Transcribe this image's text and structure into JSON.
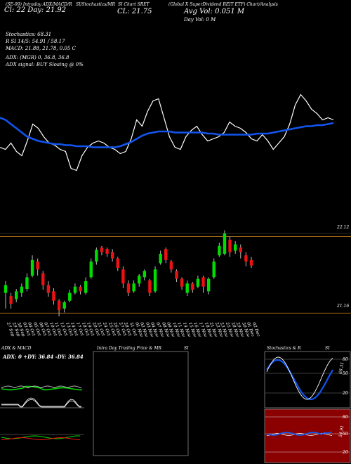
{
  "header": {
    "line1_left": "(SE-99) Intraday ADX/MACD/R",
    "line1_mid": "SI/Stochastics/MR",
    "line1_mid2": "SI Chart SRET",
    "line1_right": "(Global X SuperDividend REIT ETF) Chart/Analysis",
    "line2_left": "Cl: 22  Day: 21.92",
    "line2_mid": "CL: 21.75",
    "vol": "Avg Vol: 0.051 M",
    "dayvol": "Day Vol: 0   M"
  },
  "indicators": {
    "stoch": "Stochastics: 68.31",
    "rsi": "R          SI 14/5: 54.91 / 58.17",
    "macd": "MACD: 21.88, 21.78, 0.05 C",
    "adx": "ADX:                    (MGR) 0, 36.8, 36.8",
    "adx_signal": "ADX signal:                  BUY Sloaing @ 0%"
  },
  "price_labels": {
    "upper": "22.12",
    "lower": "21.16"
  },
  "dates": [
    "27 Sep",
    "29 Sep",
    "30 Sep",
    "03 Oct",
    "04 Oct",
    "05 Oct",
    "06 Oct",
    "07 Oct",
    "10 Oct",
    "11 Oct",
    "12 Oct",
    "13 Oct",
    "14 Oct",
    "17 Oct",
    "18 Oct",
    "19 Oct",
    "20 Oct",
    "21 Oct",
    "24 Oct",
    "25 Oct",
    "26 Oct",
    "27 Oct",
    "28 Oct",
    "31 Oct",
    "01 Nov",
    "02 Nov",
    "03 Nov",
    "04 Nov",
    "07 Nov",
    "08 Nov",
    "09 Nov",
    "10 Nov",
    "11 Nov",
    "14 Nov",
    "15 Nov",
    "16 Nov",
    "17 Nov",
    "18 Nov",
    "21 Nov",
    "22 Nov",
    "23 Nov",
    "25 Nov",
    "28 Nov",
    "29 Nov",
    "30 Nov",
    "01 Dec",
    "02 Dec"
  ],
  "panels": {
    "adx_title": "ADX  & MACD",
    "adx_values": "ADX: 0  +DY: 36.84  -DY: 36.84",
    "intra_title": "Intra Day Trading Price  & MR",
    "intra_si": "SI",
    "stoch_title": "Stochastics & R",
    "stoch_si": "SI",
    "stoch_levels": [
      "80",
      "50",
      "20"
    ],
    "stoch_value": "68.31",
    "rsi_levels": [
      "80",
      "50",
      "20"
    ],
    "rsi_value": "54.91"
  },
  "colors": {
    "up": "#00dd00",
    "down": "#ee1111",
    "ma": "#1155ee",
    "price_line": "#ffffff",
    "rsi_bg": "#8b0000",
    "grid": "#aa6a1a"
  },
  "chart_data": {
    "type": "candlestick",
    "candles": [
      {
        "o": 21.4,
        "c": 21.5,
        "h": 21.55,
        "l": 21.2
      },
      {
        "o": 21.36,
        "c": 21.26,
        "h": 21.4,
        "l": 21.2
      },
      {
        "o": 21.32,
        "c": 21.42,
        "h": 21.45,
        "l": 21.28
      },
      {
        "o": 21.4,
        "c": 21.48,
        "h": 21.52,
        "l": 21.35
      },
      {
        "o": 21.45,
        "c": 21.6,
        "h": 21.65,
        "l": 21.42
      },
      {
        "o": 21.62,
        "c": 21.82,
        "h": 21.88,
        "l": 21.6
      },
      {
        "o": 21.8,
        "c": 21.7,
        "h": 21.84,
        "l": 21.62
      },
      {
        "o": 21.65,
        "c": 21.5,
        "h": 21.68,
        "l": 21.44
      },
      {
        "o": 21.5,
        "c": 21.4,
        "h": 21.55,
        "l": 21.35
      },
      {
        "o": 21.42,
        "c": 21.3,
        "h": 21.46,
        "l": 21.25
      },
      {
        "o": 21.3,
        "c": 21.18,
        "h": 21.32,
        "l": 21.1
      },
      {
        "o": 21.2,
        "c": 21.28,
        "h": 21.3,
        "l": 21.15
      },
      {
        "o": 21.3,
        "c": 21.4,
        "h": 21.44,
        "l": 21.28
      },
      {
        "o": 21.4,
        "c": 21.48,
        "h": 21.52,
        "l": 21.38
      },
      {
        "o": 21.48,
        "c": 21.42,
        "h": 21.5,
        "l": 21.38
      },
      {
        "o": 21.4,
        "c": 21.55,
        "h": 21.6,
        "l": 21.38
      },
      {
        "o": 21.6,
        "c": 21.8,
        "h": 21.84,
        "l": 21.58
      },
      {
        "o": 21.8,
        "c": 21.95,
        "h": 21.98,
        "l": 21.76
      },
      {
        "o": 21.98,
        "c": 21.92,
        "h": 22.0,
        "l": 21.88
      },
      {
        "o": 21.96,
        "c": 21.9,
        "h": 21.98,
        "l": 21.86
      },
      {
        "o": 21.92,
        "c": 21.84,
        "h": 21.96,
        "l": 21.8
      },
      {
        "o": 21.84,
        "c": 21.72,
        "h": 21.86,
        "l": 21.68
      },
      {
        "o": 21.7,
        "c": 21.52,
        "h": 21.74,
        "l": 21.46
      },
      {
        "o": 21.52,
        "c": 21.4,
        "h": 21.56,
        "l": 21.36
      },
      {
        "o": 21.42,
        "c": 21.52,
        "h": 21.56,
        "l": 21.4
      },
      {
        "o": 21.52,
        "c": 21.62,
        "h": 21.64,
        "l": 21.48
      },
      {
        "o": 21.6,
        "c": 21.68,
        "h": 21.7,
        "l": 21.56
      },
      {
        "o": 21.56,
        "c": 21.4,
        "h": 21.58,
        "l": 21.36
      },
      {
        "o": 21.42,
        "c": 21.7,
        "h": 21.74,
        "l": 21.4
      },
      {
        "o": 21.78,
        "c": 21.9,
        "h": 21.94,
        "l": 21.76
      },
      {
        "o": 21.96,
        "c": 21.82,
        "h": 21.98,
        "l": 21.78
      },
      {
        "o": 21.8,
        "c": 21.7,
        "h": 21.82,
        "l": 21.66
      },
      {
        "o": 21.68,
        "c": 21.58,
        "h": 21.7,
        "l": 21.54
      },
      {
        "o": 21.58,
        "c": 21.48,
        "h": 21.6,
        "l": 21.44
      },
      {
        "o": 21.4,
        "c": 21.52,
        "h": 21.56,
        "l": 21.36
      },
      {
        "o": 21.52,
        "c": 21.44,
        "h": 21.54,
        "l": 21.4
      },
      {
        "o": 21.48,
        "c": 21.58,
        "h": 21.62,
        "l": 21.46
      },
      {
        "o": 21.6,
        "c": 21.48,
        "h": 21.62,
        "l": 21.4
      },
      {
        "o": 21.42,
        "c": 21.58,
        "h": 21.6,
        "l": 21.38
      },
      {
        "o": 21.6,
        "c": 21.8,
        "h": 21.84,
        "l": 21.58
      },
      {
        "o": 21.88,
        "c": 22.0,
        "h": 22.04,
        "l": 21.86
      },
      {
        "o": 21.9,
        "c": 22.16,
        "h": 22.2,
        "l": 21.88
      },
      {
        "o": 22.08,
        "c": 21.92,
        "h": 22.12,
        "l": 21.86
      },
      {
        "o": 21.94,
        "c": 22.02,
        "h": 22.06,
        "l": 21.9
      },
      {
        "o": 21.98,
        "c": 21.92,
        "h": 22.02,
        "l": 21.84
      },
      {
        "o": 21.88,
        "c": 21.8,
        "h": 21.92,
        "l": 21.74
      },
      {
        "o": 21.82,
        "c": 21.75,
        "h": 21.86,
        "l": 21.72
      }
    ],
    "price_line": [
      21.52,
      21.5,
      21.56,
      21.48,
      21.44,
      21.58,
      21.74,
      21.7,
      21.62,
      21.56,
      21.54,
      21.5,
      21.48,
      21.32,
      21.3,
      21.44,
      21.52,
      21.56,
      21.58,
      21.56,
      21.52,
      21.5,
      21.46,
      21.48,
      21.6,
      21.78,
      21.72,
      21.86,
      21.96,
      21.98,
      21.8,
      21.62,
      21.52,
      21.5,
      21.62,
      21.68,
      21.72,
      21.64,
      21.58,
      21.6,
      21.62,
      21.66,
      21.76,
      21.72,
      21.7,
      21.66,
      21.6,
      21.58,
      21.64,
      21.58,
      21.5,
      21.56,
      21.62,
      21.74,
      21.92,
      22.02,
      21.96,
      21.88,
      21.84,
      21.78,
      21.8,
      21.78
    ],
    "ma_line": [
      21.8,
      21.78,
      21.74,
      21.7,
      21.66,
      21.62,
      21.6,
      21.58,
      21.57,
      21.56,
      21.55,
      21.55,
      21.54,
      21.54,
      21.53,
      21.53,
      21.53,
      21.52,
      21.52,
      21.52,
      21.52,
      21.52,
      21.53,
      21.55,
      21.57,
      21.6,
      21.63,
      21.65,
      21.66,
      21.67,
      21.67,
      21.67,
      21.66,
      21.66,
      21.66,
      21.66,
      21.66,
      21.66,
      21.65,
      21.65,
      21.64,
      21.64,
      21.64,
      21.64,
      21.64,
      21.64,
      21.64,
      21.65,
      21.65,
      21.65,
      21.66,
      21.67,
      21.68,
      21.69,
      21.7,
      21.71,
      21.72,
      21.72,
      21.73,
      21.73,
      21.74,
      21.75
    ],
    "price_ylim": [
      21.1,
      22.6
    ],
    "ylim_upper_line": 22.12,
    "ylim_lower_line": 21.16
  }
}
